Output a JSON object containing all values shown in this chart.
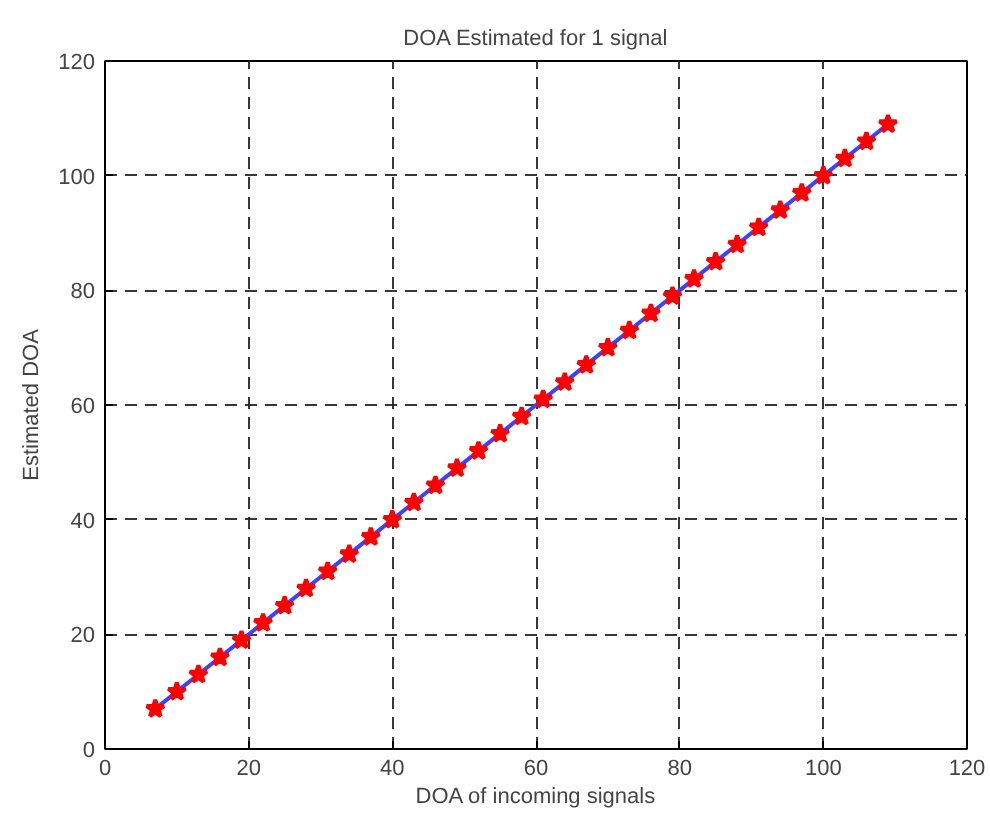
{
  "chart_data": {
    "type": "line",
    "title": "DOA Estimated for 1 signal",
    "xlabel": "DOA of incoming signals",
    "ylabel": "Estimated DOA",
    "x": [
      7,
      10,
      13,
      16,
      19,
      22,
      25,
      28,
      31,
      34,
      37,
      40,
      43,
      46,
      49,
      52,
      55,
      58,
      61,
      64,
      67,
      70,
      73,
      76,
      79,
      82,
      85,
      88,
      91,
      94,
      97,
      100,
      103,
      106,
      109
    ],
    "series": [
      {
        "color": "#4040ff",
        "marker": "none",
        "values": [
          7,
          10,
          13,
          16,
          19,
          22,
          25,
          28,
          31,
          34,
          37,
          40,
          43,
          46,
          49,
          52,
          55,
          58,
          61,
          64,
          67,
          70,
          73,
          76,
          79,
          82,
          85,
          88,
          91,
          94,
          97,
          100,
          103,
          106,
          109
        ]
      },
      {
        "type": "scatter",
        "color": "#ff0000",
        "marker": "star",
        "values": [
          7,
          10,
          13,
          16,
          19,
          22,
          25,
          28,
          31,
          34,
          37,
          40,
          43,
          46,
          49,
          52,
          55,
          58,
          61,
          64,
          67,
          70,
          73,
          76,
          79,
          82,
          85,
          88,
          91,
          94,
          97,
          100,
          103,
          106,
          109
        ]
      }
    ],
    "xlim": [
      0,
      120
    ],
    "ylim": [
      0,
      120
    ],
    "xticks": [
      0,
      20,
      40,
      60,
      80,
      100,
      120
    ],
    "yticks": [
      0,
      20,
      40,
      60,
      80,
      100,
      120
    ],
    "grid": true,
    "line_style": "solid"
  }
}
